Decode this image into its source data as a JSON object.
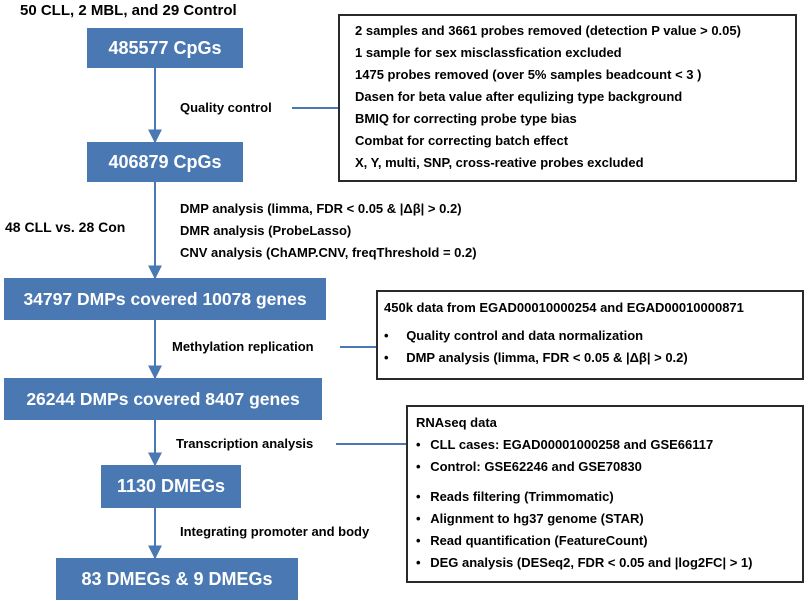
{
  "header": "50 CLL, 2 MBL, and 29 Control",
  "boxes": {
    "cpgs_initial": "485577 CpGs",
    "cpgs_qc": "406879 CpGs",
    "dmps": "34797 DMPs covered 10078 genes",
    "dmps_replicated": "26244 DMPs covered 8407 genes",
    "dmegs": "1130 DMEGs",
    "final": "83 DMEGs & 9 DMEGs"
  },
  "labels": {
    "quality_control": "Quality control",
    "comparison": "48 CLL vs. 28 Con",
    "dmp_analysis": "DMP analysis (limma, FDR < 0.05 & |Δβ| > 0.2)",
    "dmr_analysis": "DMR analysis (ProbeLasso)",
    "cnv_analysis": "CNV analysis (ChAMP.CNV, freqThreshold = 0.2)",
    "methylation_replication": "Methylation replication",
    "transcription_analysis": "Transcription analysis",
    "integrating": "Integrating promoter and body"
  },
  "qc_panel": {
    "items": [
      "2 samples and 3661 probes removed (detection P value > 0.05)",
      "1 sample for sex misclassfication excluded",
      "1475 probes removed (over 5% samples beadcount < 3 )",
      "Dasen for beta value after equlizing type background",
      "BMIQ for correcting probe type bias",
      "Combat for correcting batch effect",
      "X, Y, multi, SNP, cross-reative probes excluded"
    ]
  },
  "replication_panel": {
    "title": "450k data from EGAD00010000254 and EGAD00010000871",
    "bullets": [
      "Quality control  and data normalization",
      "DMP analysis (limma, FDR < 0.05 & |Δβ| > 0.2)"
    ]
  },
  "rnaseq_panel": {
    "title": "RNAseq data",
    "group1": [
      "CLL cases: EGAD00001000258 and GSE66117",
      "Control: GSE62246 and GSE70830"
    ],
    "group2": [
      "Reads filtering (Trimmomatic)",
      "Alignment to hg37 genome (STAR)",
      "Read quantification (FeatureCount)",
      "DEG analysis (DESeq2, FDR < 0.05 and |log2FC| > 1)"
    ]
  },
  "bullet_char": "•",
  "colors": {
    "box_fill": "#4a78b3",
    "arrow": "#4a78b3",
    "panel_border": "#2a2a2a"
  }
}
